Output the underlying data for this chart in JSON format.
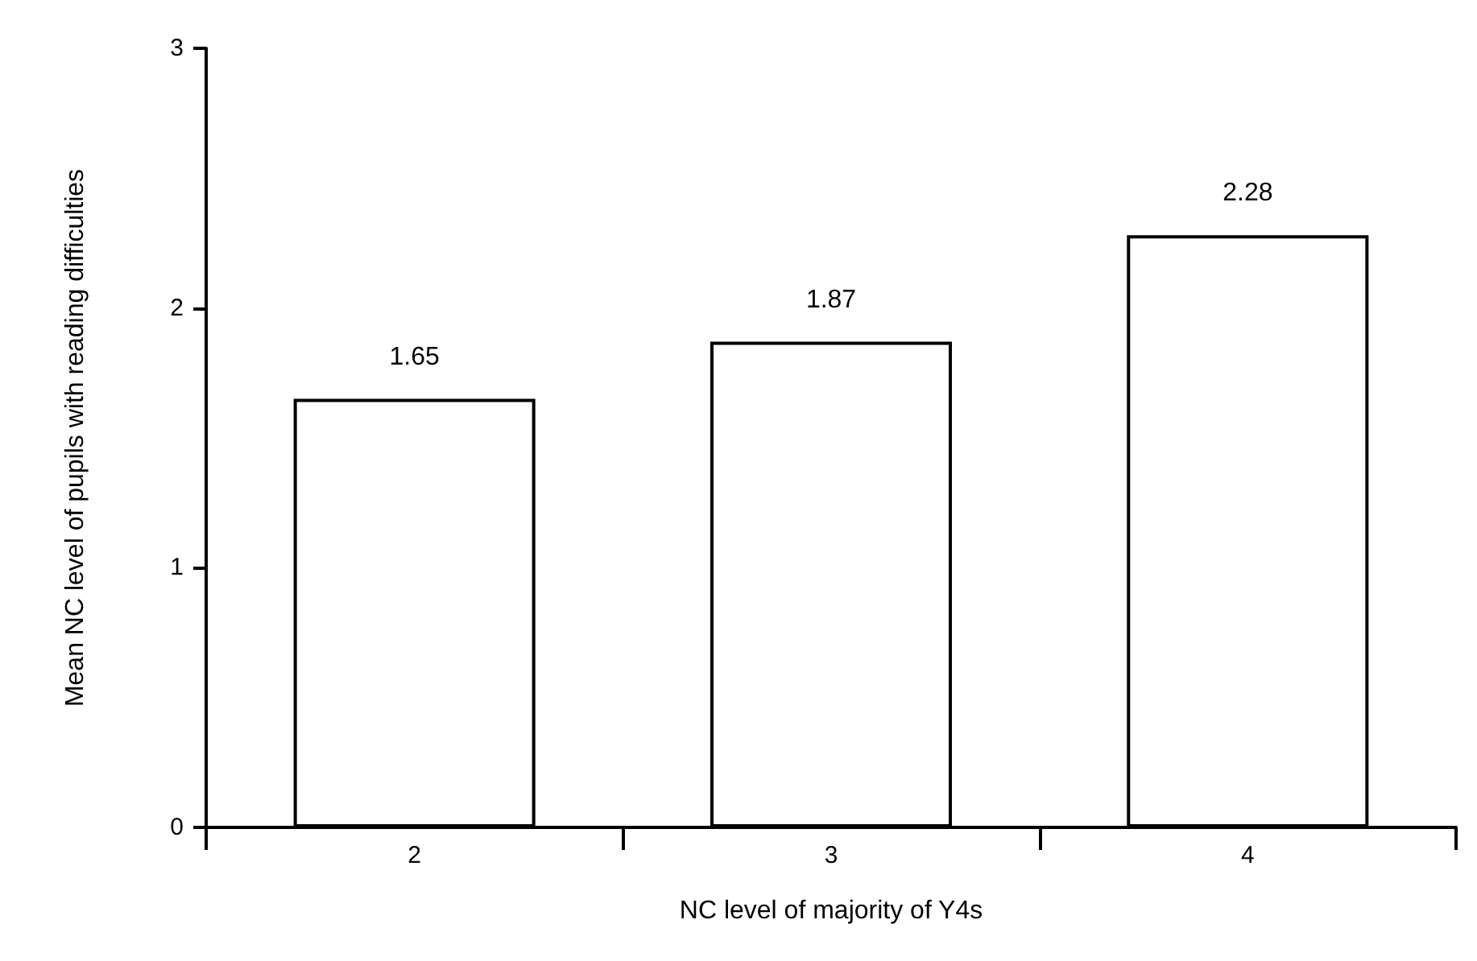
{
  "chart_data": {
    "type": "bar",
    "xlabel": "NC level of majority of Y4s",
    "ylabel": "Mean NC level of pupils with reading difficulties",
    "categories": [
      "2",
      "3",
      "4"
    ],
    "values": [
      1.65,
      1.87,
      2.28
    ],
    "color": "#ffffff",
    "ylim": [
      0,
      3
    ],
    "yticks": [
      0,
      1,
      2,
      3
    ],
    "data_labels": true,
    "grid": false
  }
}
